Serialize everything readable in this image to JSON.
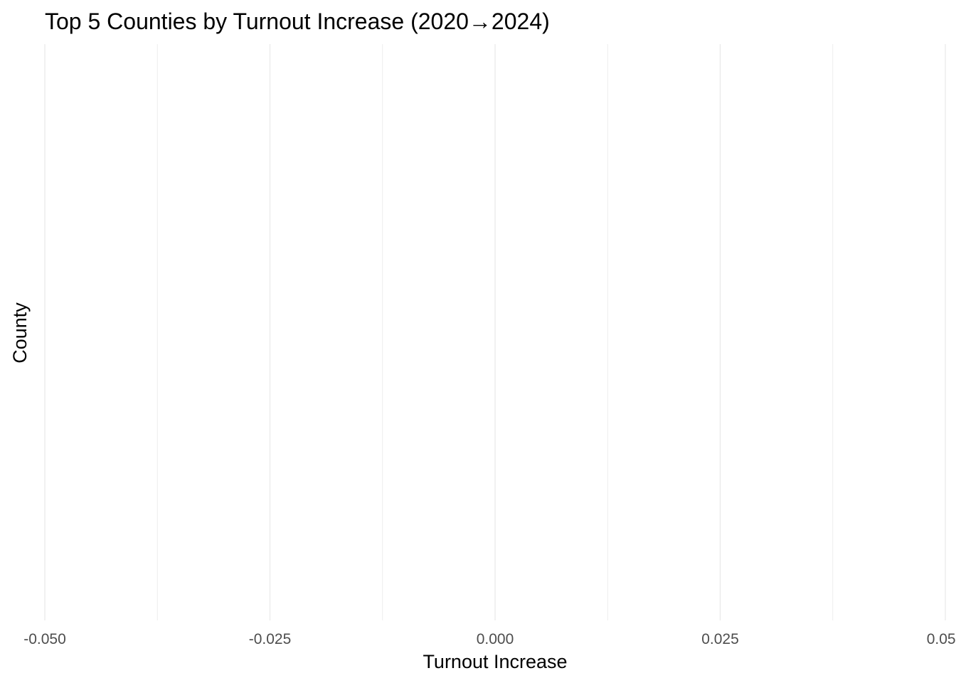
{
  "chart_data": {
    "type": "bar",
    "orientation": "horizontal",
    "title": "Top 5 Counties by Turnout Increase (2020→2024)",
    "xlabel": "Turnout Increase",
    "ylabel": "County",
    "xlim": [
      -0.05,
      0.05
    ],
    "x_ticks": [
      -0.05,
      -0.025,
      0.0,
      0.025,
      0.05
    ],
    "x_tick_labels": [
      "-0.050",
      "-0.025",
      "0.000",
      "0.025",
      "0.050"
    ],
    "x_minor_ticks": [
      -0.0375,
      -0.0125,
      0.0125,
      0.0375
    ],
    "categories": [],
    "values": [],
    "grid": "vertical",
    "legend": "none",
    "colors": {
      "background": "#ffffff",
      "grid": "#ebebeb",
      "tick_text": "#4d4d4d",
      "text": "#000000"
    }
  }
}
